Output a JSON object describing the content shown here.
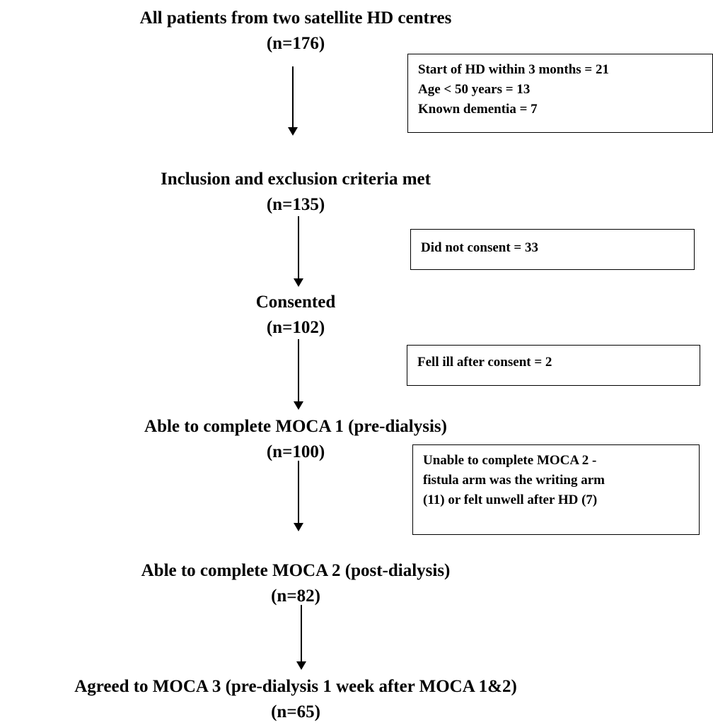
{
  "steps": [
    {
      "title": "All patients from two satellite HD centres",
      "n": "(n=176)"
    },
    {
      "title": "Inclusion and exclusion criteria met",
      "n": "(n=135)"
    },
    {
      "title": "Consented",
      "n": "(n=102)"
    },
    {
      "title": "Able to complete MOCA 1 (pre-dialysis)",
      "n": "(n=100)"
    },
    {
      "title": "Able to complete MOCA 2 (post-dialysis)",
      "n": "(n=82)"
    },
    {
      "title": "Agreed to MOCA 3 (pre-dialysis 1 week after MOCA 1&2)",
      "n": "(n=65)"
    }
  ],
  "exclusions": [
    {
      "lines": [
        "Start of HD within 3 months = 21",
        "Age < 50 years  = 13",
        "Known dementia  = 7"
      ]
    },
    {
      "lines": [
        "Did not consent = 33"
      ]
    },
    {
      "lines": [
        "Fell ill after consent = 2"
      ]
    },
    {
      "lines": [
        "Unable to complete MOCA 2 -",
        "fistula arm was the writing arm",
        "(11) or felt unwell after HD (7)"
      ]
    }
  ]
}
